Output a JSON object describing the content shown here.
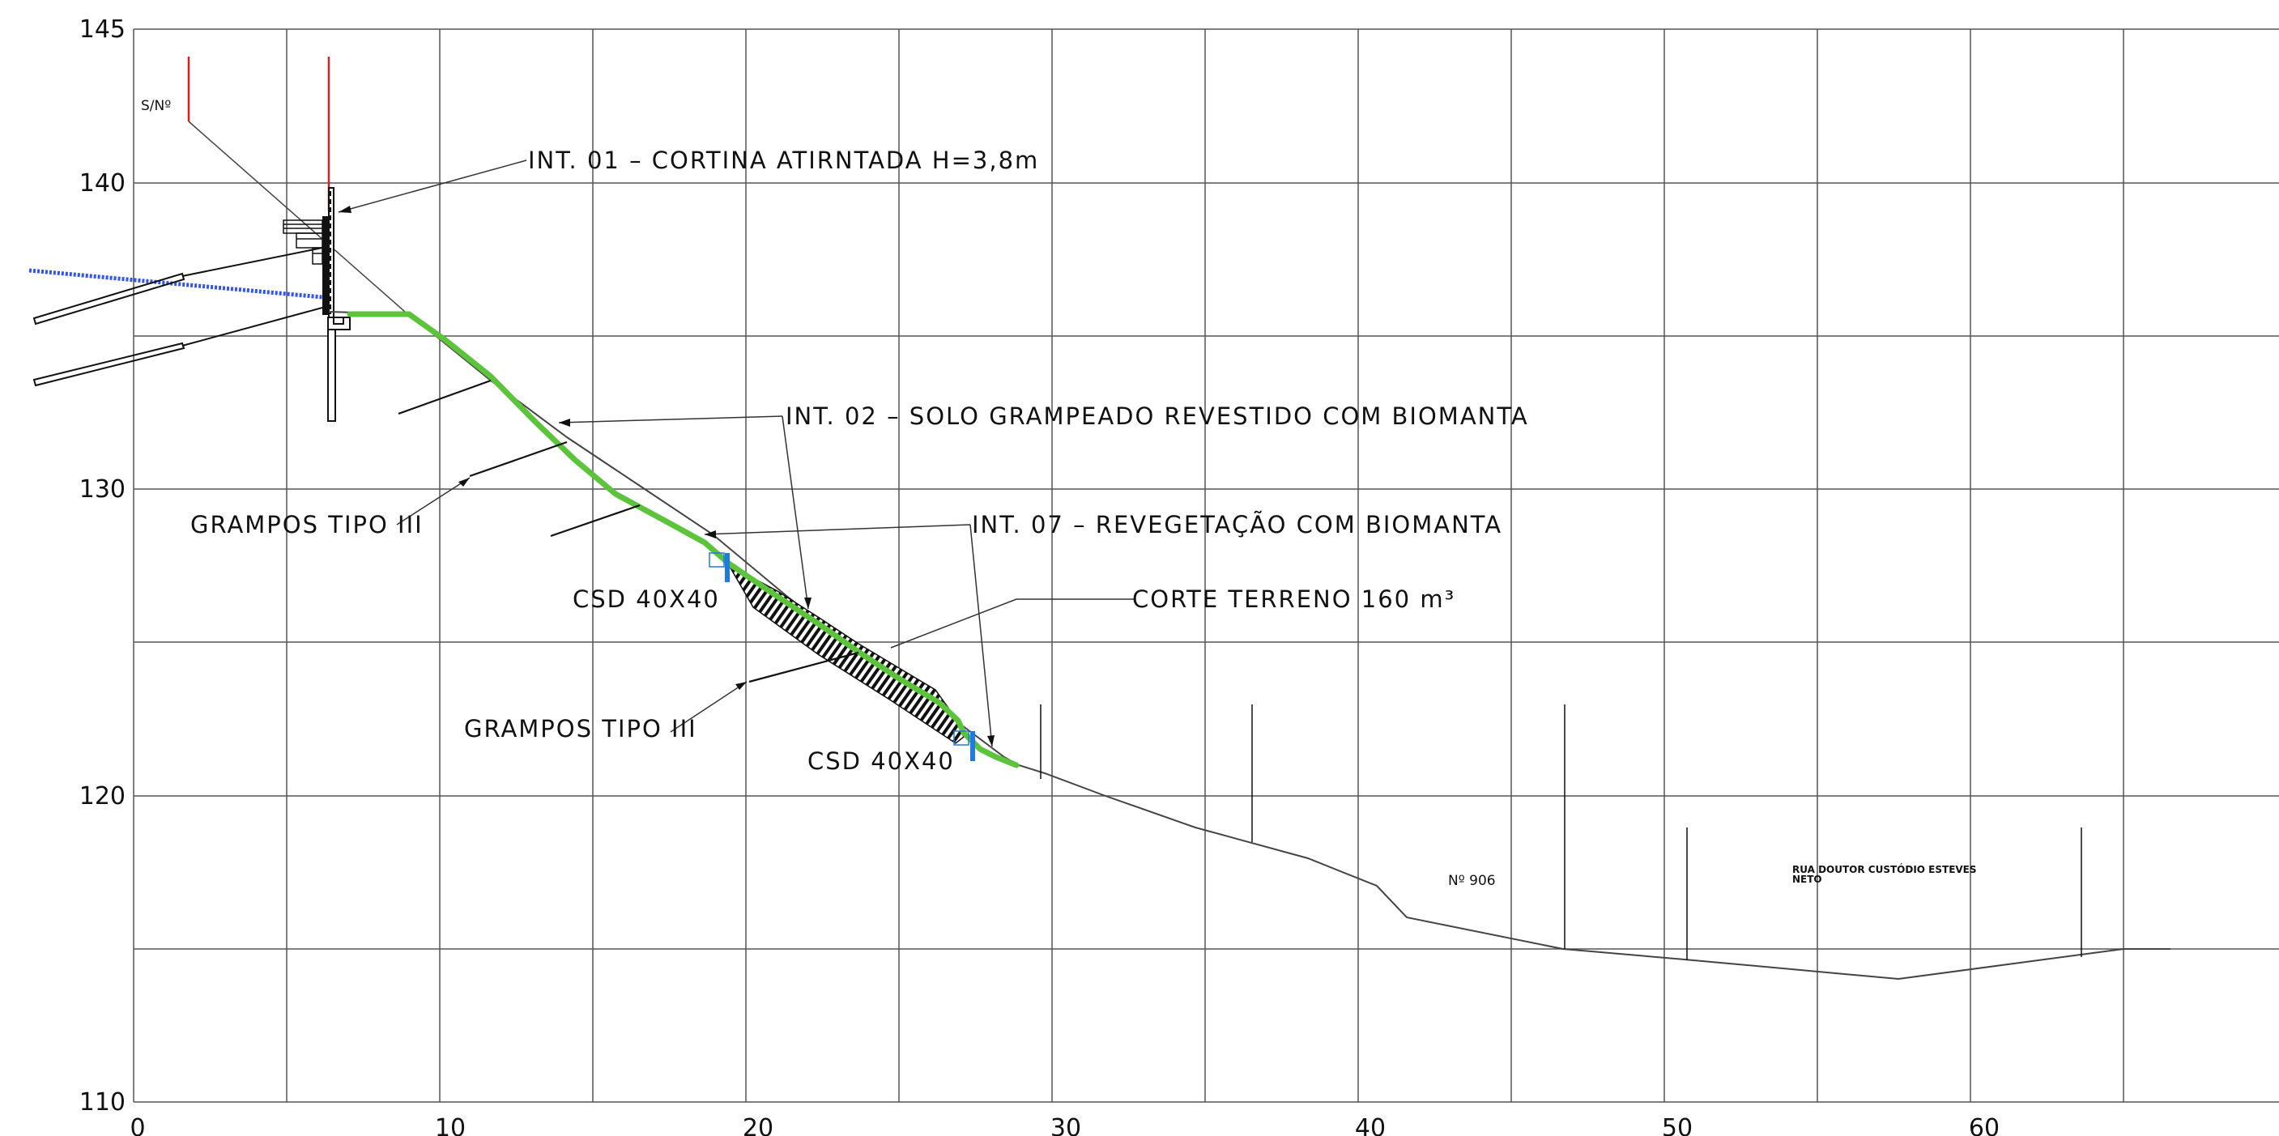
{
  "axes": {
    "y_ticks": [
      "145",
      "140",
      "130",
      "120",
      "110"
    ],
    "x_ticks": [
      "0",
      "10",
      "20",
      "30",
      "40",
      "50",
      "60"
    ]
  },
  "annotations": {
    "int01": "INT. 01 – CORTINA ATIRNTADA H=3,8m",
    "int02": "INT. 02 – SOLO GRAMPEADO REVESTIDO COM BIOMANTA",
    "int07": "INT. 07 – REVEGETAÇÃO COM BIOMANTA",
    "corte": "CORTE TERRENO 160 m³",
    "grampos_upper": "GRAMPOS TIPO III",
    "grampos_lower": "GRAMPOS TIPO III",
    "csd_upper": "CSD 40X40",
    "csd_lower": "CSD 40X40",
    "sn": "S/Nº",
    "numero": "Nº 906",
    "rua_line1": "RUA DOUTOR CUSTÓDIO ESTEVES",
    "rua_line2": "NETO"
  },
  "colors": {
    "grid": "#555555",
    "terrain": "#444444",
    "structure": "#111111",
    "vegetation": "#5cc43a",
    "drainage": "#1e7be0",
    "water": "#3355ee",
    "property_line": "#d42020"
  }
}
